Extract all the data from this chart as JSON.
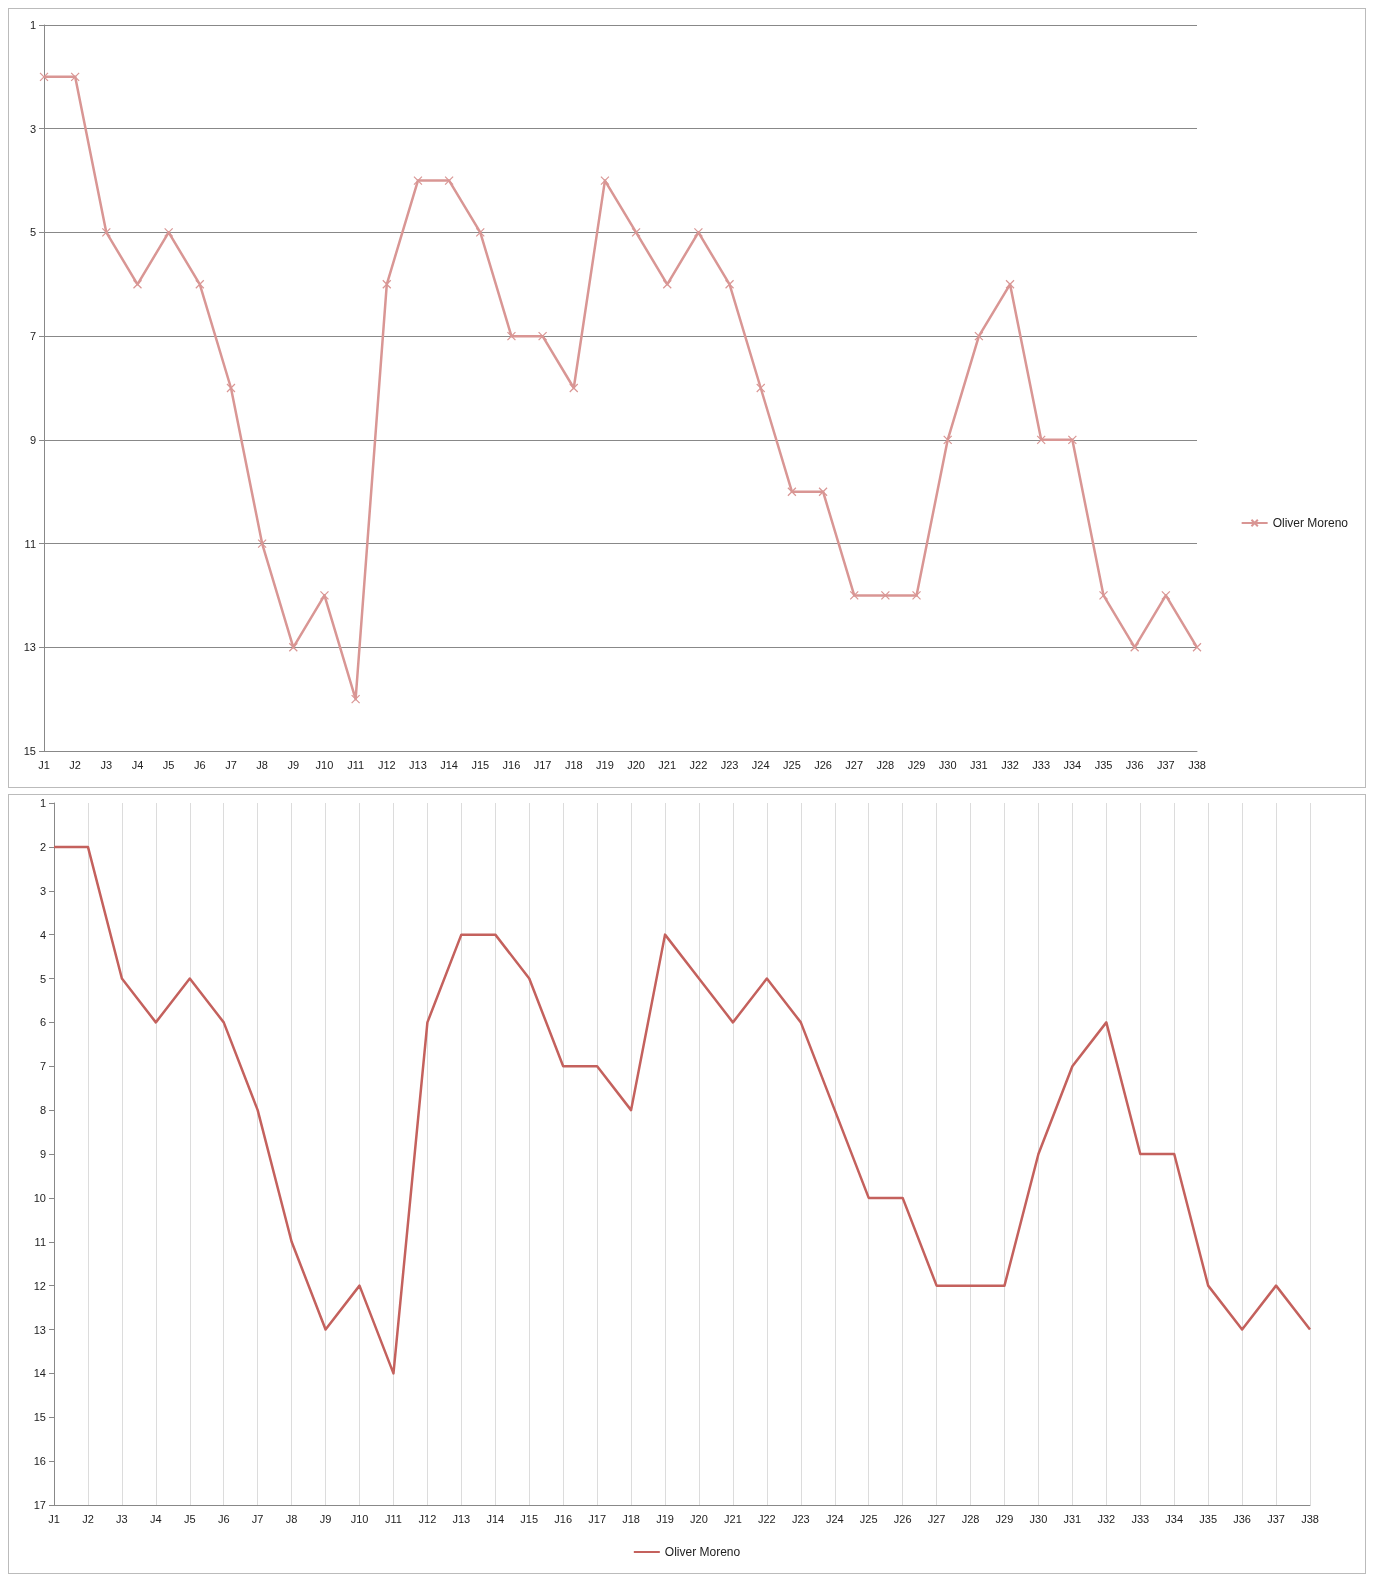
{
  "chart_data": [
    {
      "type": "line",
      "categories": [
        "J1",
        "J2",
        "J3",
        "J4",
        "J5",
        "J6",
        "J7",
        "J8",
        "J9",
        "J10",
        "J11",
        "J12",
        "J13",
        "J14",
        "J15",
        "J16",
        "J17",
        "J18",
        "J19",
        "J20",
        "J21",
        "J22",
        "J23",
        "J24",
        "J25",
        "J26",
        "J27",
        "J28",
        "J29",
        "J30",
        "J31",
        "J32",
        "J33",
        "J34",
        "J35",
        "J36",
        "J37",
        "J38"
      ],
      "ylim": [
        15,
        1
      ],
      "yticks": [
        1,
        3,
        5,
        7,
        9,
        11,
        13,
        15
      ],
      "grid": "y",
      "legend": "right",
      "series": [
        {
          "name": "Oliver Moreno",
          "color": "#d99694",
          "marker": "cross",
          "values": [
            2,
            2,
            5,
            6,
            5,
            6,
            8,
            11,
            13,
            12,
            14,
            6,
            4,
            4,
            5,
            7,
            7,
            8,
            4,
            5,
            6,
            5,
            6,
            8,
            10,
            10,
            12,
            12,
            12,
            9,
            7,
            6,
            9,
            9,
            12,
            13,
            12,
            13
          ]
        }
      ]
    },
    {
      "type": "line",
      "categories": [
        "J1",
        "J2",
        "J3",
        "J4",
        "J5",
        "J6",
        "J7",
        "J8",
        "J9",
        "J10",
        "J11",
        "J12",
        "J13",
        "J14",
        "J15",
        "J16",
        "J17",
        "J18",
        "J19",
        "J20",
        "J21",
        "J22",
        "J23",
        "J24",
        "J25",
        "J26",
        "J27",
        "J28",
        "J29",
        "J30",
        "J31",
        "J32",
        "J33",
        "J34",
        "J35",
        "J36",
        "J37",
        "J38"
      ],
      "ylim": [
        17,
        1
      ],
      "yticks": [
        1,
        2,
        3,
        4,
        5,
        6,
        7,
        8,
        9,
        10,
        11,
        12,
        13,
        14,
        15,
        16,
        17
      ],
      "grid": "x",
      "legend": "bottom",
      "marker": "none",
      "series": [
        {
          "name": "Oliver Moreno",
          "color": "#c4615d",
          "values": [
            2,
            2,
            5,
            6,
            5,
            6,
            8,
            11,
            13,
            12,
            14,
            6,
            4,
            4,
            5,
            7,
            7,
            8,
            4,
            5,
            6,
            5,
            6,
            8,
            10,
            10,
            12,
            12,
            12,
            9,
            7,
            6,
            9,
            9,
            12,
            13,
            12,
            13
          ]
        }
      ]
    }
  ]
}
